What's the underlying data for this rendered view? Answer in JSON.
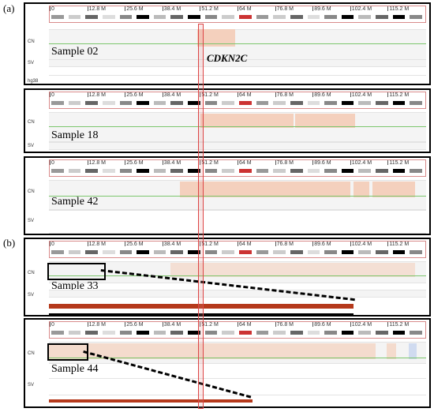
{
  "figure": {
    "panel_a": "(a)",
    "panel_b": "(b)",
    "gene_label": "CDKN2C",
    "ruler_ticks": [
      "0",
      "12.8 M",
      "25.6 M",
      "38.4 M",
      "51.2 M",
      "64 M",
      "76.8 M",
      "89.6 M",
      "102.4 M",
      "115.2 M"
    ],
    "track_labels": {
      "cn": "CN",
      "sv": "SV",
      "hg38": "hg38"
    },
    "colors": {
      "amplification": "#f3c9b3",
      "cn_line": "#7cc66d",
      "highlight": "#d44444",
      "depth": "#b5391b"
    }
  },
  "samples": [
    {
      "name": "Sample 02",
      "has_hg38": true
    },
    {
      "name": "Sample 18"
    },
    {
      "name": "Sample 42"
    },
    {
      "name": "Sample 33",
      "zoom": true
    },
    {
      "name": "Sample 44",
      "zoom": true
    }
  ]
}
